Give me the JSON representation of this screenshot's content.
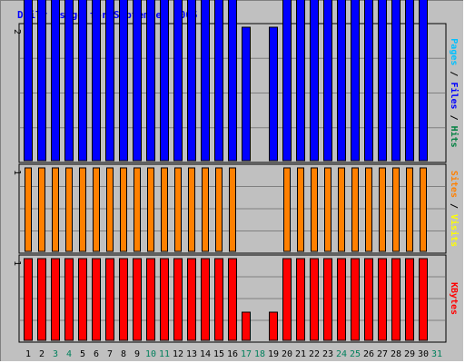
{
  "chart_data": {
    "type": "bar",
    "title": "Daily usage for September 2005",
    "days": [
      "1",
      "2",
      "3",
      "4",
      "5",
      "6",
      "7",
      "8",
      "9",
      "10",
      "11",
      "12",
      "13",
      "14",
      "15",
      "16",
      "17",
      "18",
      "19",
      "20",
      "21",
      "22",
      "23",
      "24",
      "25",
      "26",
      "27",
      "28",
      "29",
      "30",
      "31"
    ],
    "weekend_days": [
      "3",
      "4",
      "10",
      "11",
      "17",
      "18",
      "24",
      "25",
      "31"
    ],
    "panels": [
      {
        "id": "pages-files-hits",
        "ymax_label": "2",
        "series": [
          {
            "name": "Hits",
            "color": "#0000ff",
            "values": [
              2,
              2,
              2,
              2,
              2,
              2,
              2,
              2,
              2,
              2,
              2,
              2,
              2,
              2,
              2,
              2,
              1,
              0,
              1,
              2,
              2,
              2,
              2,
              2,
              2,
              2,
              2,
              2,
              2,
              2,
              0
            ]
          }
        ],
        "legend": [
          {
            "text": "Pages",
            "color": "#00c0ff"
          },
          {
            "text": "Files",
            "color": "#0000ff"
          },
          {
            "text": "Hits",
            "color": "#008040"
          }
        ]
      },
      {
        "id": "sites-visits",
        "ymax_label": "1",
        "series": [
          {
            "name": "Visits",
            "color": "#ff8000",
            "values": [
              1,
              1,
              1,
              1,
              1,
              1,
              1,
              1,
              1,
              1,
              1,
              1,
              1,
              1,
              1,
              1,
              0,
              0,
              0,
              1,
              1,
              1,
              1,
              1,
              1,
              1,
              1,
              1,
              1,
              1,
              0
            ]
          }
        ],
        "legend": [
          {
            "text": "Sites",
            "color": "#ff8000"
          },
          {
            "text": "Visits",
            "color": "#ffff00"
          }
        ]
      },
      {
        "id": "kbytes",
        "ymax_label": "1",
        "series": [
          {
            "name": "KBytes",
            "color": "#ff0000",
            "values": [
              1,
              1,
              1,
              1,
              1,
              1,
              1,
              1,
              1,
              1,
              1,
              1,
              1,
              1,
              1,
              1,
              0.35,
              0,
              0.35,
              1,
              1,
              1,
              1,
              1,
              1,
              1,
              1,
              1,
              1,
              1,
              0
            ]
          }
        ],
        "legend": [
          {
            "text": "KBytes",
            "color": "#ff0000"
          }
        ]
      }
    ],
    "legend_separator": " / ",
    "colors": {
      "background": "#c0c0c0",
      "title": "#0000ff",
      "gridline": "#808080",
      "day_label": "#000000",
      "weekend_label": "#00805c"
    },
    "grid": true
  }
}
